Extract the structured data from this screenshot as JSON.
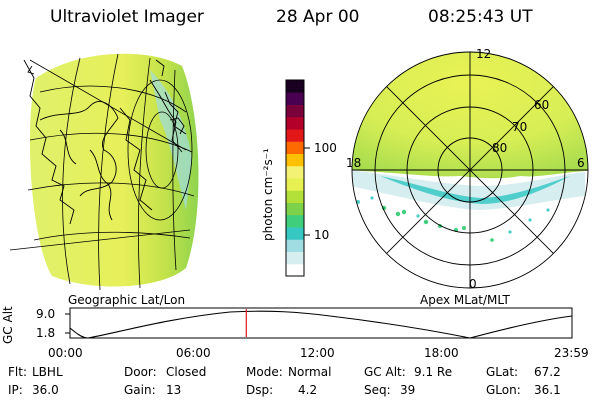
{
  "header": {
    "instrument": "Ultraviolet Imager",
    "date": "28 Apr 00",
    "time": "08:25:43 UT"
  },
  "left_map": {
    "label": "Geographic Lat/Lon"
  },
  "right_map": {
    "label": "Apex MLat/MLT",
    "mlt_labels": {
      "top": "12",
      "left": "18",
      "right": "6",
      "bottom": "0"
    },
    "lat_labels": [
      "60",
      "70",
      "80"
    ]
  },
  "colorbar": {
    "units_label": "photon cm⁻²s⁻¹",
    "tick_labels": [
      "100",
      "10"
    ],
    "tick_values": [
      100,
      10
    ],
    "colors": [
      "#ffffff",
      "#d6eef0",
      "#9fdde3",
      "#38c8c4",
      "#3fcf7c",
      "#7ed24a",
      "#b4e03a",
      "#e6f050",
      "#f3f274",
      "#ffc000",
      "#ff6a00",
      "#e21818",
      "#b3002a",
      "#7a003c",
      "#4a0050",
      "#1a0020"
    ]
  },
  "altitude_panel": {
    "ylabel": "GC Alt",
    "yticks": [
      "9.0",
      "1.8"
    ],
    "xticks": [
      "00:00",
      "06:00",
      "12:00",
      "18:00",
      "23:59"
    ],
    "current_time_hours": 8.43
  },
  "info": {
    "row1": [
      {
        "key": "Flt:",
        "value": "LBHL"
      },
      {
        "key": "Door:",
        "value": "Closed"
      },
      {
        "key": "Mode:",
        "value": "Normal"
      },
      {
        "key": "GC Alt:",
        "value": "9.1 Re"
      },
      {
        "key": "GLat:",
        "value": "67.2"
      }
    ],
    "row2": [
      {
        "key": "IP:",
        "value": "36.0"
      },
      {
        "key": "Gain:",
        "value": "13"
      },
      {
        "key": "Dsp:",
        "value": "4.2"
      },
      {
        "key": "Seq:",
        "value": "39"
      },
      {
        "key": "GLon:",
        "value": "36.1"
      }
    ]
  }
}
